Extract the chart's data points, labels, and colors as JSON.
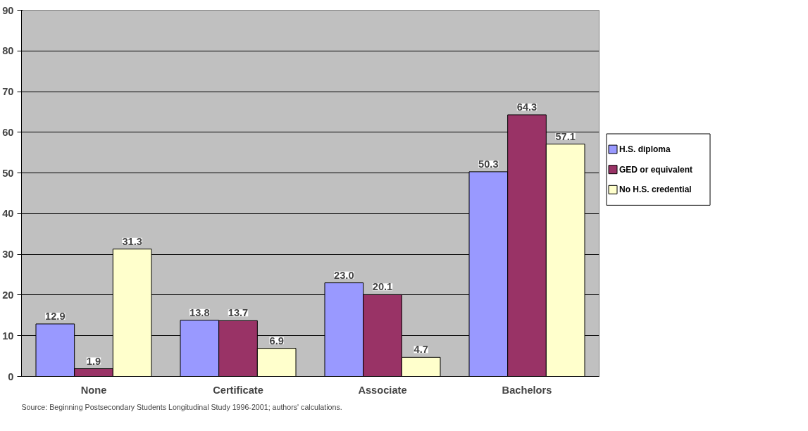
{
  "chart_data": {
    "type": "bar",
    "categories": [
      "None",
      "Certificate",
      "Associate",
      "Bachelors"
    ],
    "series": [
      {
        "name": "H.S. diploma",
        "color": "#9999ff",
        "values": [
          12.9,
          13.8,
          23.0,
          50.3
        ],
        "value_labels": [
          "12.9",
          "13.8",
          "23.0",
          "50.3"
        ]
      },
      {
        "name": "GED or equivalent",
        "color": "#993366",
        "values": [
          1.9,
          13.7,
          20.1,
          64.3
        ],
        "value_labels": [
          "1.9",
          "13.7",
          "20.1",
          "64.3"
        ]
      },
      {
        "name": "No H.S. credential",
        "color": "#ffffcc",
        "values": [
          31.3,
          6.9,
          4.7,
          57.1
        ],
        "value_labels": [
          "31.3",
          "6.9",
          "4.7",
          "57.1"
        ]
      }
    ],
    "ylim": [
      0,
      90
    ],
    "yticks": [
      0,
      10,
      20,
      30,
      40,
      50,
      60,
      70,
      80,
      90
    ],
    "grid": "y",
    "legend": "right",
    "annotations": [
      "Source:  Beginning Postsecondary Students Longitudinal Study 1996-2001; authors' calculations."
    ]
  }
}
